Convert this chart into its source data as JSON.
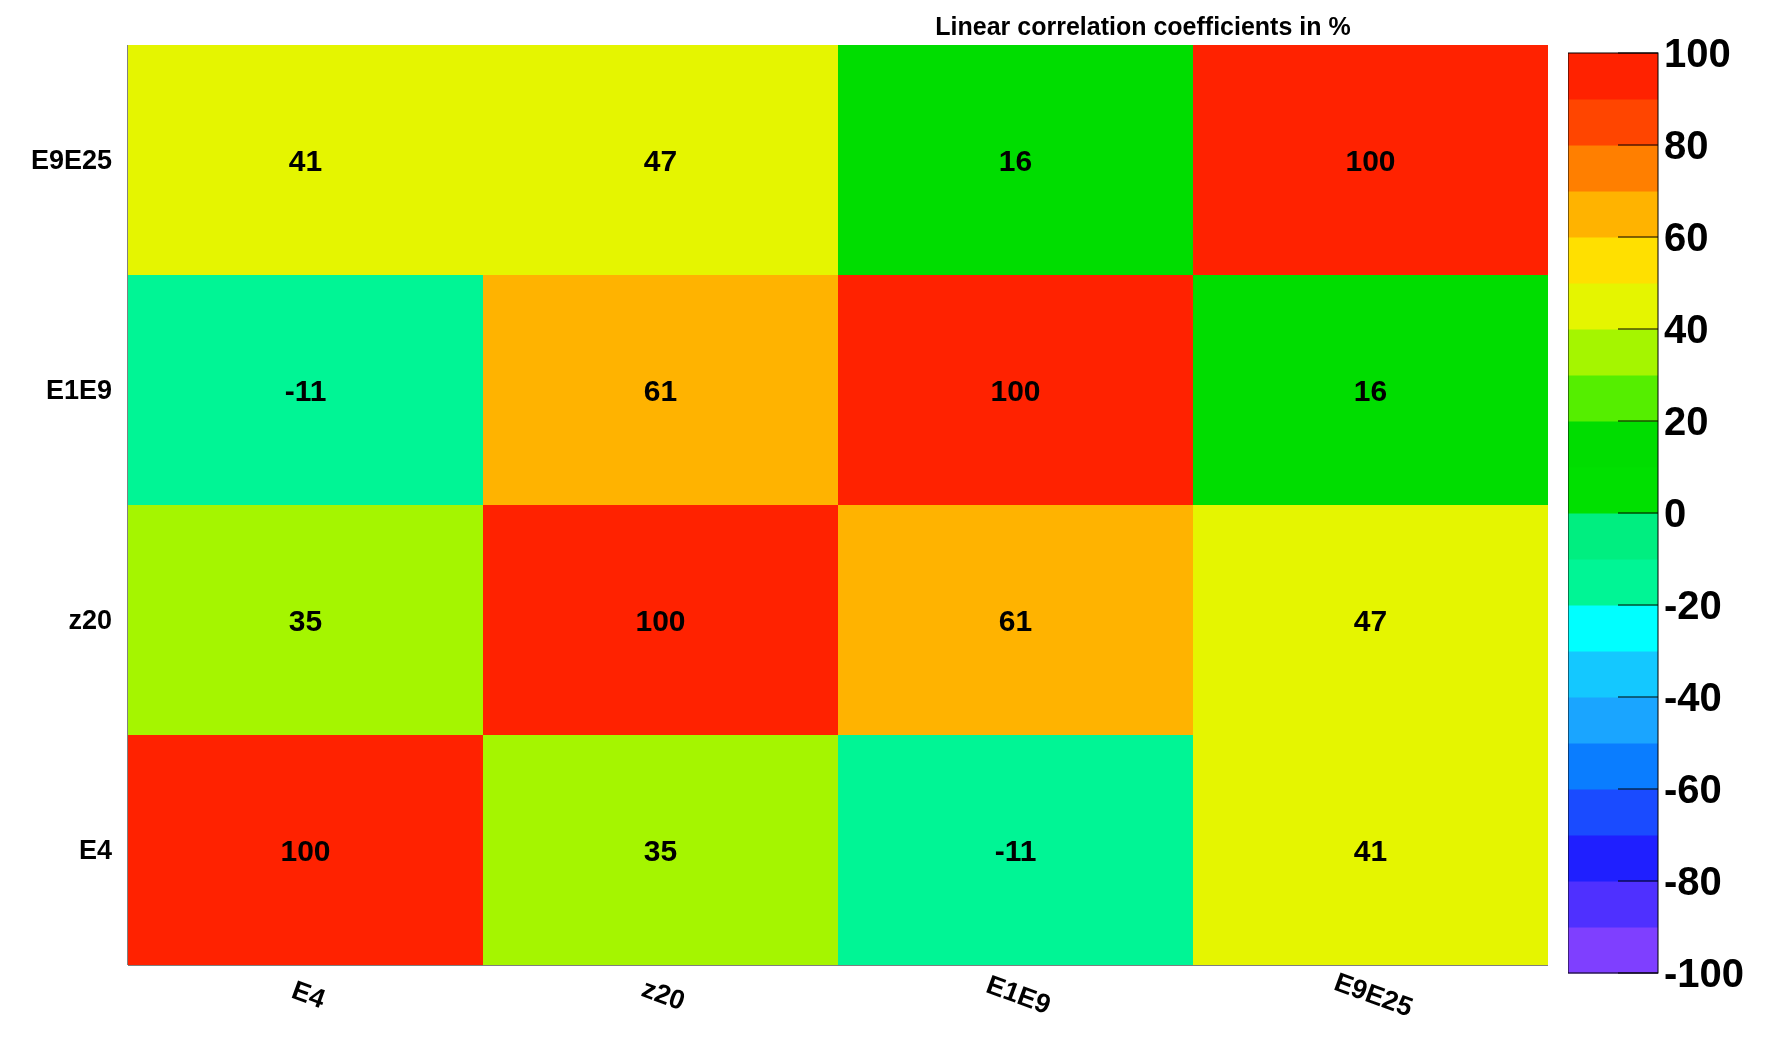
{
  "chart_data": {
    "type": "heatmap",
    "title": "Linear correlation coefficients in %",
    "categories": [
      "E4",
      "z20",
      "E1E9",
      "E9E25"
    ],
    "y_categories": [
      "E9E25",
      "E1E9",
      "z20",
      "E4"
    ],
    "cells": [
      [
        41,
        47,
        16,
        100
      ],
      [
        -11,
        61,
        100,
        16
      ],
      [
        35,
        100,
        61,
        47
      ],
      [
        100,
        35,
        -11,
        41
      ]
    ],
    "data_labels": true,
    "clim": [
      -100,
      100
    ],
    "cticks": [
      -100,
      -80,
      -60,
      -40,
      -20,
      0,
      20,
      40,
      60,
      80,
      100
    ],
    "colors": [
      "#7f3fff",
      "#4f30ff",
      "#1f1fff",
      "#1a4bff",
      "#0a7dff",
      "#1aa5ff",
      "#14c8ff",
      "#00ffff",
      "#00f595",
      "#00ee80",
      "#00e000",
      "#00dd00",
      "#55ee00",
      "#a5f500",
      "#e5f500",
      "#ffe000",
      "#ffb300",
      "#ff7f00",
      "#ff4500",
      "#ff2200"
    ]
  }
}
